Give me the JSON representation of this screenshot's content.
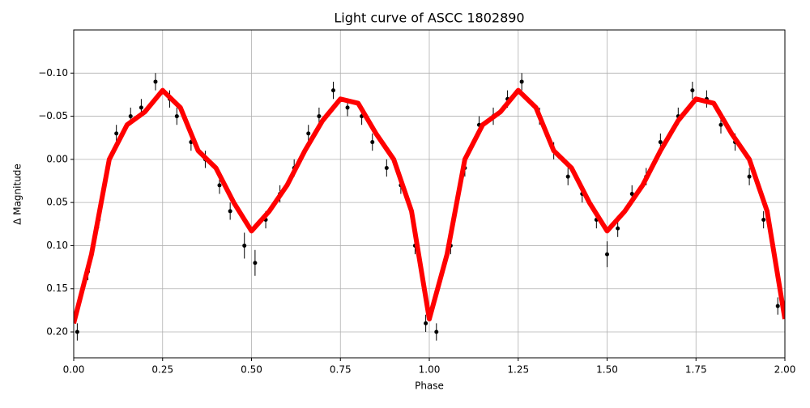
{
  "chart_data": {
    "type": "scatter",
    "title": "Light curve of ASCC 1802890",
    "x_label": "Phase",
    "y_label": "Δ Magnitude",
    "xlim": [
      0,
      2
    ],
    "ylim": [
      0.23,
      -0.15
    ],
    "grid": true,
    "xticks": [
      {
        "value": 0,
        "label": "0.00"
      },
      {
        "value": 0.25,
        "label": "0.25"
      },
      {
        "value": 0.5,
        "label": "0.50"
      },
      {
        "value": 0.75,
        "label": "0.75"
      },
      {
        "value": 1,
        "label": "1.00"
      },
      {
        "value": 1.25,
        "label": "1.25"
      },
      {
        "value": 1.5,
        "label": "1.50"
      },
      {
        "value": 1.75,
        "label": "1.75"
      },
      {
        "value": 2,
        "label": "2.00"
      }
    ],
    "yticks": [
      {
        "value": -0.1,
        "label": "−0.10"
      },
      {
        "value": -0.05,
        "label": "−0.05"
      },
      {
        "value": 0,
        "label": "0.00"
      },
      {
        "value": 0.05,
        "label": "0.05"
      },
      {
        "value": 0.1,
        "label": "0.10"
      },
      {
        "value": 0.15,
        "label": "0.15"
      },
      {
        "value": 0.2,
        "label": "0.20"
      }
    ],
    "series": [
      {
        "type": "errorbar",
        "color": "#000000",
        "x": [
          0.01,
          0.04,
          0.07,
          0.09,
          0.12,
          0.16,
          0.19,
          0.23,
          0.27,
          0.29,
          0.33,
          0.37,
          0.41,
          0.44,
          0.48,
          0.51,
          0.54,
          0.58,
          0.62,
          0.66,
          0.69,
          0.73,
          0.77,
          0.81,
          0.84,
          0.88,
          0.92,
          0.96,
          0.99,
          1.02,
          1.06,
          1.1,
          1.14,
          1.18,
          1.22,
          1.26,
          1.31,
          1.35,
          1.39,
          1.43,
          1.47,
          1.5,
          1.53,
          1.57,
          1.61,
          1.65,
          1.7,
          1.74,
          1.78,
          1.82,
          1.86,
          1.9,
          1.94,
          1.98
        ],
        "values": [
          0.2,
          0.13,
          0.07,
          0.02,
          -0.03,
          -0.05,
          -0.06,
          -0.09,
          -0.07,
          -0.05,
          -0.02,
          0.0,
          0.03,
          0.06,
          0.1,
          0.12,
          0.07,
          0.04,
          0.01,
          -0.03,
          -0.05,
          -0.08,
          -0.06,
          -0.05,
          -0.02,
          0.01,
          0.03,
          0.1,
          0.19,
          0.2,
          0.1,
          0.01,
          -0.04,
          -0.05,
          -0.07,
          -0.09,
          -0.05,
          -0.01,
          0.02,
          0.04,
          0.07,
          0.11,
          0.08,
          0.04,
          0.02,
          -0.02,
          -0.05,
          -0.08,
          -0.07,
          -0.04,
          -0.02,
          0.02,
          0.07,
          0.17
        ],
        "errors": [
          0.01,
          0.01,
          0.01,
          0.01,
          0.01,
          0.01,
          0.01,
          0.01,
          0.01,
          0.01,
          0.01,
          0.01,
          0.01,
          0.01,
          0.015,
          0.015,
          0.01,
          0.01,
          0.01,
          0.01,
          0.01,
          0.01,
          0.01,
          0.01,
          0.01,
          0.01,
          0.01,
          0.01,
          0.01,
          0.01,
          0.01,
          0.01,
          0.01,
          0.01,
          0.01,
          0.01,
          0.01,
          0.01,
          0.01,
          0.01,
          0.01,
          0.015,
          0.01,
          0.01,
          0.01,
          0.01,
          0.01,
          0.01,
          0.01,
          0.01,
          0.01,
          0.01,
          0.01,
          0.01
        ]
      },
      {
        "type": "line",
        "color": "#ff0000",
        "x": [
          0,
          0.05,
          0.1,
          0.15,
          0.2,
          0.25,
          0.3,
          0.35,
          0.4,
          0.45,
          0.5,
          0.55,
          0.6,
          0.65,
          0.7,
          0.75,
          0.8,
          0.85,
          0.9,
          0.95,
          1,
          1.05,
          1.1,
          1.15,
          1.2,
          1.25,
          1.3,
          1.35,
          1.4,
          1.45,
          1.5,
          1.55,
          1.6,
          1.65,
          1.7,
          1.75,
          1.8,
          1.85,
          1.9,
          1.95,
          2
        ],
        "values": [
          0.19,
          0.11,
          0.0,
          -0.04,
          -0.055,
          -0.08,
          -0.06,
          -0.01,
          0.01,
          0.05,
          0.083,
          0.06,
          0.03,
          -0.01,
          -0.045,
          -0.07,
          -0.065,
          -0.03,
          0.0,
          0.06,
          0.185,
          0.11,
          0.0,
          -0.04,
          -0.055,
          -0.08,
          -0.06,
          -0.01,
          0.01,
          0.05,
          0.083,
          0.06,
          0.03,
          -0.01,
          -0.045,
          -0.07,
          -0.065,
          -0.03,
          0.0,
          0.06,
          0.185
        ]
      }
    ]
  }
}
